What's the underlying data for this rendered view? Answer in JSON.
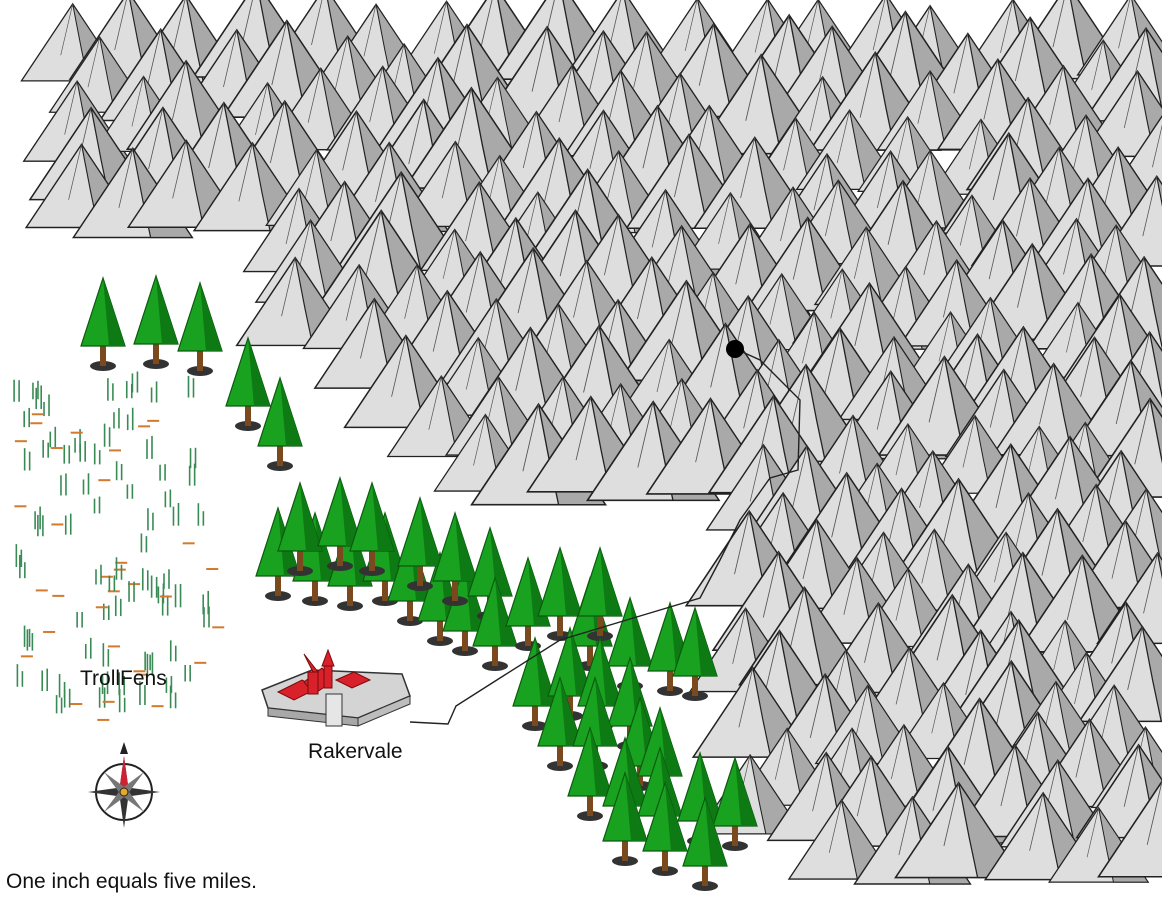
{
  "labels": {
    "fens": "TrollFens",
    "town": "Rakervale",
    "scale": "One inch equals five miles."
  },
  "icons": {
    "mountain": "mountain-icon",
    "tree": "pine-tree-icon",
    "marsh": "marsh-icon",
    "town": "walled-town-icon",
    "compass": "compass-rose-icon",
    "location": "location-dot-icon"
  },
  "colors": {
    "mountain_light": "#dcdcdc",
    "mountain_shadow": "#a8a8a8",
    "tree_green": "#19a21f",
    "trunk": "#7a4a1e",
    "marsh_green": "#3a8a55",
    "marsh_orange": "#d27a2e",
    "roof_red": "#d8212a",
    "path": "#222222"
  }
}
